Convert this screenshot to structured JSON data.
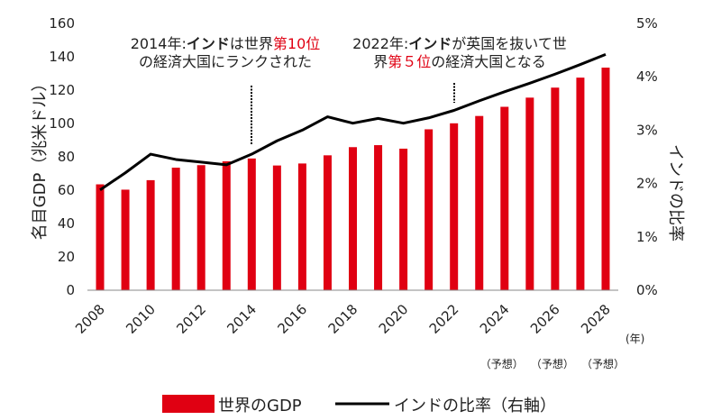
{
  "chart_data": {
    "type": "bar+line",
    "x": [
      2008,
      2009,
      2010,
      2011,
      2012,
      2013,
      2014,
      2015,
      2016,
      2017,
      2018,
      2019,
      2020,
      2021,
      2022,
      2023,
      2024,
      2025,
      2026,
      2027,
      2028
    ],
    "x_tick_labels": [
      "2008",
      "2010",
      "2012",
      "2014",
      "2016",
      "2018",
      "2020",
      "2022",
      "2024",
      "2026",
      "2028"
    ],
    "forecast_labels": {
      "2024": "（予想）",
      "2026": "（予想）",
      "2028": "（予想）"
    },
    "x_unit": "(年)",
    "series": [
      {
        "name": "世界のGDP",
        "type": "bar",
        "axis": "left",
        "color": "#e00012",
        "values": [
          63.5,
          60.3,
          66.0,
          73.5,
          75.0,
          77.3,
          79.0,
          74.8,
          76.0,
          80.9,
          85.8,
          87.0,
          84.9,
          96.5,
          100.1,
          104.5,
          110.0,
          115.5,
          121.5,
          127.5,
          133.5
        ]
      },
      {
        "name": "インドの比率（右軸）",
        "type": "line",
        "axis": "right",
        "color": "#000000",
        "values": [
          1.88,
          2.2,
          2.55,
          2.45,
          2.4,
          2.35,
          2.55,
          2.8,
          3.0,
          3.25,
          3.13,
          3.22,
          3.13,
          3.23,
          3.37,
          3.55,
          3.72,
          3.88,
          4.05,
          4.23,
          4.42
        ]
      }
    ],
    "ylabel": "名目GDP（兆米ドル）",
    "ylim": [
      0,
      160
    ],
    "yticks": [
      0,
      20,
      40,
      60,
      80,
      100,
      120,
      140,
      160
    ],
    "y2label": "インドの比率",
    "y2lim": [
      0,
      5
    ],
    "y2ticks": [
      "0%",
      "1%",
      "2%",
      "3%",
      "4%",
      "5%"
    ],
    "grid": false,
    "legend_position": "bottom",
    "annotations": [
      {
        "year": 2014,
        "lines": [
          [
            {
              "t": "2014年:",
              "s": ""
            },
            {
              "t": "インド",
              "s": "b"
            },
            {
              "t": "は世界",
              "s": ""
            },
            {
              "t": "第10位",
              "s": "red"
            }
          ],
          [
            {
              "t": "の経済大国にランクされた",
              "s": ""
            }
          ]
        ]
      },
      {
        "year": 2022,
        "lines": [
          [
            {
              "t": "2022年:",
              "s": ""
            },
            {
              "t": "インド",
              "s": "b"
            },
            {
              "t": "が英国を抜いて世",
              "s": ""
            }
          ],
          [
            {
              "t": "界",
              "s": ""
            },
            {
              "t": "第５位",
              "s": "red"
            },
            {
              "t": "の経済大国となる",
              "s": ""
            }
          ]
        ]
      }
    ]
  }
}
